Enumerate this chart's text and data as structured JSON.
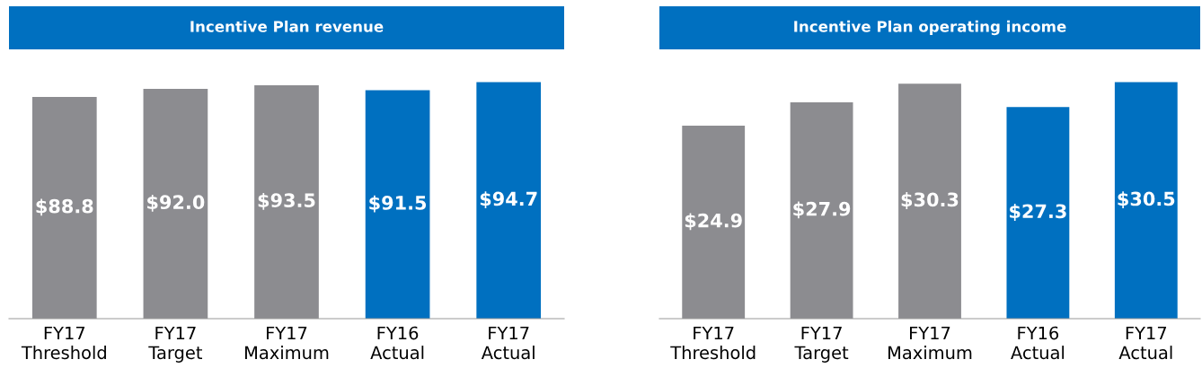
{
  "chart_data": [
    {
      "type": "bar",
      "title": "Incentive Plan revenue",
      "categories": [
        "FY17\nThreshold",
        "FY17\nTarget",
        "FY17\nMaximum",
        "FY16\nActual",
        "FY17\nActual"
      ],
      "values": [
        88.8,
        92.0,
        93.5,
        91.5,
        94.7
      ],
      "value_labels": [
        "$88.8",
        "$92.0",
        "$93.5",
        "$91.5",
        "$94.7"
      ],
      "colors": [
        "#8c8c90",
        "#8c8c90",
        "#8c8c90",
        "#0070c0",
        "#0070c0"
      ],
      "tick_labels": "x",
      "grid": false,
      "legend": false
    },
    {
      "type": "bar",
      "title": "Incentive Plan operating income",
      "categories": [
        "FY17\nThreshold",
        "FY17\nTarget",
        "FY17\nMaximum",
        "FY16\nActual",
        "FY17\nActual"
      ],
      "values": [
        24.9,
        27.9,
        30.3,
        27.3,
        30.5
      ],
      "value_labels": [
        "$24.9",
        "$27.9",
        "$30.3",
        "$27.3",
        "$30.5"
      ],
      "colors": [
        "#8c8c90",
        "#8c8c90",
        "#8c8c90",
        "#0070c0",
        "#0070c0"
      ],
      "tick_labels": "x",
      "grid": false,
      "legend": false
    }
  ]
}
